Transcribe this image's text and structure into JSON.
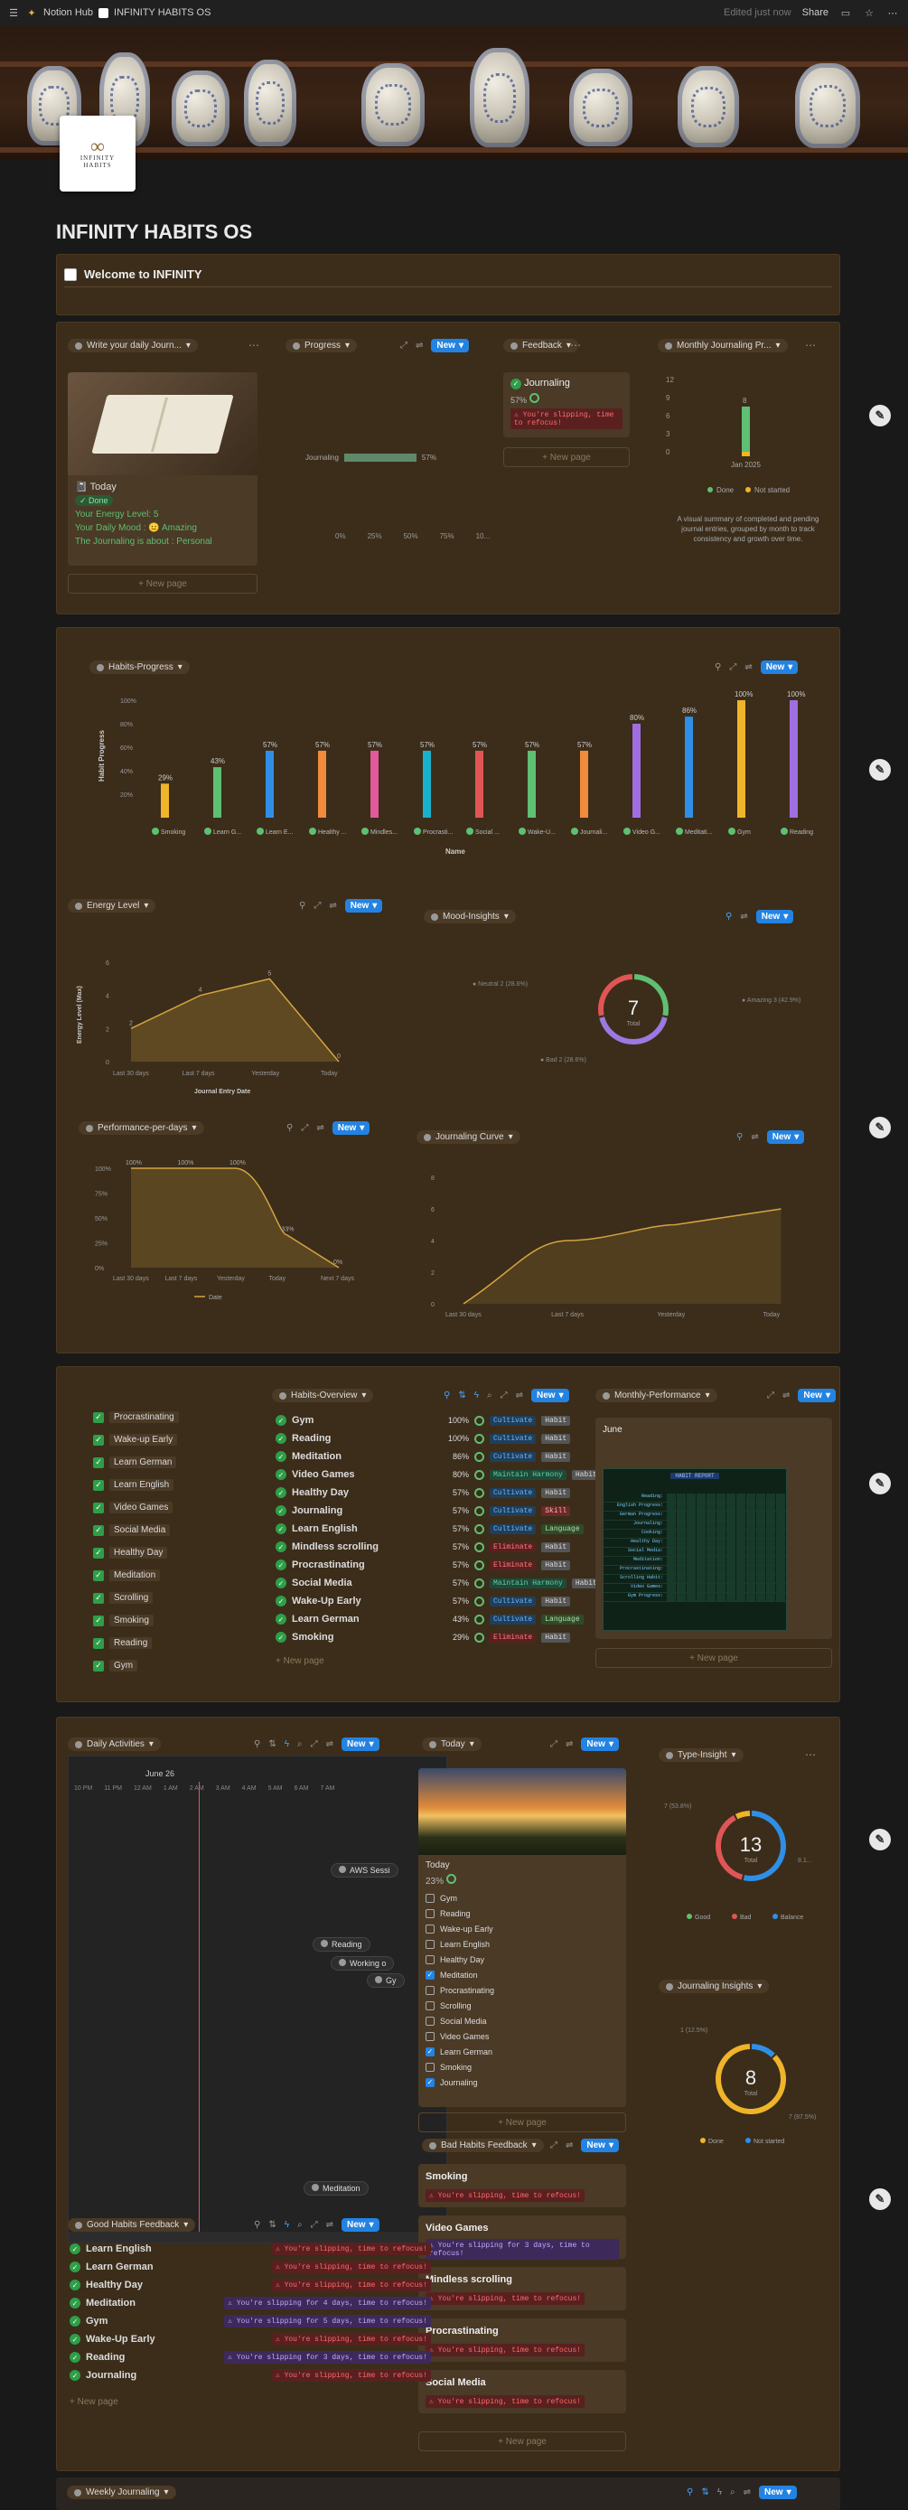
{
  "topbar": {
    "workspace": "Notion Hub",
    "page": "INFINITY HABITS OS",
    "edited": "Edited just now",
    "share": "Share"
  },
  "logo": {
    "symbol": "∞",
    "line1": "INFINITY",
    "line2": "HABITS"
  },
  "page_title": "INFINITY HABITS OS",
  "welcome": "Welcome to INFINITY",
  "new": "New",
  "new_page": "+ New page",
  "sec1": {
    "journal": {
      "chip": "Write your daily Journ...",
      "title": "Today",
      "done": "✓ Done",
      "energy": "Your Energy Level: 5",
      "mood": "Your Daily Mood : 😐 Amazing",
      "about": "The Journaling is about : Personal"
    },
    "progress": {
      "chip": "Progress",
      "row": "Journaling",
      "pct": "57%",
      "ticks": [
        "0%",
        "25%",
        "50%",
        "75%",
        "10..."
      ]
    },
    "feedback": {
      "chip": "Feedback",
      "title": "Journaling",
      "pct": "57%",
      "warn": "⚠ You're slipping, time to refocus!"
    },
    "monthly": {
      "chip": "Monthly Journaling Pr...",
      "yticks": [
        "12",
        "9",
        "6",
        "3",
        "0"
      ],
      "value": "8",
      "xlabel": "Jan 2025",
      "legend": [
        "Done",
        "Not started"
      ],
      "desc": "A visual summary of completed and pending journal entries, grouped by month to track consistency and growth over time."
    }
  },
  "habits_progress": {
    "chip": "Habits-Progress",
    "ylabel": "Habit Progress",
    "xlabel": "Name",
    "yticks": [
      "100%",
      "80%",
      "60%",
      "40%",
      "20%"
    ]
  },
  "chart_data": [
    {
      "type": "bar",
      "title": "Habits-Progress",
      "xlabel": "Name",
      "ylabel": "Habit Progress",
      "categories": [
        "Smoking",
        "Learn G...",
        "Learn E...",
        "Healthy ...",
        "Mindles...",
        "Procrasti...",
        "Social ...",
        "Wake-U...",
        "Journali...",
        "Video G...",
        "Meditati...",
        "Gym",
        "Reading"
      ],
      "values": [
        29,
        43,
        57,
        57,
        57,
        57,
        57,
        57,
        57,
        80,
        86,
        100,
        100
      ],
      "labels": [
        "29%",
        "43%",
        "57%",
        "57%",
        "57%",
        "57%",
        "57%",
        "57%",
        "57%",
        "80%",
        "86%",
        "100%",
        "100%"
      ],
      "colors": [
        "#f0b429",
        "#5fbf73",
        "#2f8fe6",
        "#f08a3c",
        "#e05a9c",
        "#19b0c9",
        "#e05555",
        "#5fbf73",
        "#f08a3c",
        "#a06ee0",
        "#2f8fe6",
        "#f0b429",
        "#a06ee0"
      ],
      "ylim": [
        0,
        100
      ]
    },
    {
      "type": "area",
      "title": "Energy Level",
      "xlabel": "Journal Entry Date",
      "ylabel": "Energy Level (Max)",
      "categories": [
        "Last 30 days",
        "Last 7 days",
        "Yesterday",
        "Today"
      ],
      "values": [
        2,
        4,
        5,
        0
      ],
      "yticks": [
        "6",
        "4",
        "2",
        "0"
      ]
    },
    {
      "type": "pie",
      "title": "Mood-Insights",
      "total": "7",
      "total_label": "Total",
      "slices": [
        {
          "name": "Neutral",
          "label": "Neutral 2 (28.6%)",
          "value": 2,
          "color": "#5fbf73"
        },
        {
          "name": "Amazing",
          "label": "Amazing 3 (42.9%)",
          "value": 3,
          "color": "#9a7ae0"
        },
        {
          "name": "Bad",
          "label": "Bad 2 (28.6%)",
          "value": 2,
          "color": "#e05555"
        }
      ]
    },
    {
      "type": "area",
      "title": "Performance-per-days",
      "categories": [
        "Last 30 days",
        "Last 7 days",
        "Yesterday",
        "Today",
        "Next 7 days"
      ],
      "values": [
        100,
        100,
        100,
        33,
        0
      ],
      "labels": [
        "100%",
        "100%",
        "100%",
        "33%",
        "0%"
      ],
      "yticks": [
        "100%",
        "75%",
        "50%",
        "25%",
        "0%"
      ],
      "legend": "Date"
    },
    {
      "type": "line",
      "title": "Journaling Curve",
      "categories": [
        "Last 30 days",
        "Last 7 days",
        "Yesterday",
        "Today"
      ],
      "values": [
        0,
        4,
        5,
        6
      ],
      "yticks": [
        "8",
        "6",
        "4",
        "2",
        "0"
      ]
    },
    {
      "type": "pie",
      "title": "Type-Insight",
      "total": "13",
      "total_label": "Total",
      "slices": [
        {
          "name": "Good",
          "label": "7 (53.8%)",
          "value": 7,
          "color": "#2f8fe6"
        },
        {
          "name": "Bad",
          "label": "",
          "value": 5,
          "color": "#e05555"
        },
        {
          "name": "Balance",
          "label": "8.1...",
          "value": 1,
          "color": "#f0b429"
        }
      ]
    },
    {
      "type": "pie",
      "title": "Journaling Insights",
      "total": "8",
      "total_label": "Total",
      "slices": [
        {
          "name": "Done",
          "label": "1 (12.5%)",
          "value": 1,
          "color": "#2f8fe6"
        },
        {
          "name": "Not started",
          "label": "7 (87.5%)",
          "value": 7,
          "color": "#f0b429"
        }
      ]
    }
  ],
  "sec2": {
    "energy_chip": "Energy Level",
    "mood_chip": "Mood-Insights",
    "perf_chip": "Performance-per-days",
    "curve_chip": "Journaling Curve",
    "x_energy": "Journal Entry Date",
    "y_energy": "Energy Level (Max)"
  },
  "sec3": {
    "checklist": [
      "Procrastinating",
      "Wake-up Early",
      "Learn German",
      "Learn English",
      "Video Games",
      "Social Media",
      "Healthy Day",
      "Meditation",
      "Scrolling",
      "Smoking",
      "Reading",
      "Gym"
    ],
    "overview_chip": "Habits-Overview",
    "overview": [
      {
        "name": "Gym",
        "pct": "100%",
        "type": "Cultivate",
        "cat": "Habit",
        "cls": "t-cult",
        "ccls": "t-habit"
      },
      {
        "name": "Reading",
        "pct": "100%",
        "type": "Cultivate",
        "cat": "Habit",
        "cls": "t-cult",
        "ccls": "t-habit"
      },
      {
        "name": "Meditation",
        "pct": "86%",
        "type": "Cultivate",
        "cat": "Habit",
        "cls": "t-cult",
        "ccls": "t-habit"
      },
      {
        "name": "Video Games",
        "pct": "80%",
        "type": "Maintain Harmony",
        "cat": "Habit",
        "cls": "t-maint",
        "ccls": "t-habit"
      },
      {
        "name": "Healthy Day",
        "pct": "57%",
        "type": "Cultivate",
        "cat": "Habit",
        "cls": "t-cult",
        "ccls": "t-habit"
      },
      {
        "name": "Journaling",
        "pct": "57%",
        "type": "Cultivate",
        "cat": "Skill",
        "cls": "t-cult",
        "ccls": "t-skill"
      },
      {
        "name": "Learn English",
        "pct": "57%",
        "type": "Cultivate",
        "cat": "Language",
        "cls": "t-cult",
        "ccls": "t-lang"
      },
      {
        "name": "Mindless scrolling",
        "pct": "57%",
        "type": "Eliminate",
        "cat": "Habit",
        "cls": "t-elim",
        "ccls": "t-habit"
      },
      {
        "name": "Procrastinating",
        "pct": "57%",
        "type": "Eliminate",
        "cat": "Habit",
        "cls": "t-elim",
        "ccls": "t-habit"
      },
      {
        "name": "Social Media",
        "pct": "57%",
        "type": "Maintain Harmony",
        "cat": "Habit",
        "cls": "t-maint",
        "ccls": "t-habit"
      },
      {
        "name": "Wake-Up Early",
        "pct": "57%",
        "type": "Cultivate",
        "cat": "Habit",
        "cls": "t-cult",
        "ccls": "t-habit"
      },
      {
        "name": "Learn German",
        "pct": "43%",
        "type": "Cultivate",
        "cat": "Language",
        "cls": "t-cult",
        "ccls": "t-lang"
      },
      {
        "name": "Smoking",
        "pct": "29%",
        "type": "Eliminate",
        "cat": "Habit",
        "cls": "t-elim",
        "ccls": "t-habit"
      }
    ],
    "monthly_chip": "Monthly-Performance",
    "month": "June",
    "table_title": "HABIT REPORT",
    "table_rows": [
      "Reading:",
      "English Progress:",
      "German Progress:",
      "Journaling:",
      "Cooking:",
      "Healthy Day:",
      "Social Media:",
      "Meditation:",
      "Procrastinating:",
      "Scrolling Habit:",
      "Video Games:",
      "Gym Progress:"
    ]
  },
  "sec4": {
    "daily_chip": "Daily Activities",
    "date": "June 26",
    "times": [
      "10 PM",
      "11 PM",
      "12 AM",
      "1 AM",
      "2 AM",
      "3 AM",
      "4 AM",
      "5 AM",
      "6 AM",
      "7 AM"
    ],
    "events": [
      "AWS Sessi",
      "Reading",
      "Working o",
      "Gy",
      "Meditation"
    ],
    "today_chip": "Today",
    "today_title": "Today",
    "today_pct": "23%",
    "today_list": [
      {
        "n": "Gym",
        "c": false
      },
      {
        "n": "Reading",
        "c": false
      },
      {
        "n": "Wake-up Early",
        "c": false
      },
      {
        "n": "Learn English",
        "c": false
      },
      {
        "n": "Healthy Day",
        "c": false
      },
      {
        "n": "Meditation",
        "c": true
      },
      {
        "n": "Procrastinating",
        "c": false
      },
      {
        "n": "Scrolling",
        "c": false
      },
      {
        "n": "Social Media",
        "c": false
      },
      {
        "n": "Video Games",
        "c": false
      },
      {
        "n": "Learn German",
        "c": true
      },
      {
        "n": "Smoking",
        "c": false
      },
      {
        "n": "Journaling",
        "c": true
      }
    ],
    "type_chip": "Type-Insight",
    "type_legend": [
      "Good",
      "Bad",
      "Balance"
    ],
    "ji_chip": "Journaling Insights",
    "ji_legend": [
      "Done",
      "Not started"
    ],
    "good_chip": "Good Habits Feedback",
    "good": [
      {
        "n": "Learn English",
        "w": "⚠ You're slipping, time to refocus!",
        "p": false
      },
      {
        "n": "Learn German",
        "w": "⚠ You're slipping, time to refocus!",
        "p": false
      },
      {
        "n": "Healthy Day",
        "w": "⚠ You're slipping, time to refocus!",
        "p": false
      },
      {
        "n": "Meditation",
        "w": "⚠ You're slipping for 4 days, time to refocus!",
        "p": true
      },
      {
        "n": "Gym",
        "w": "⚠ You're slipping for 5 days, time to refocus!",
        "p": true
      },
      {
        "n": "Wake-Up Early",
        "w": "⚠ You're slipping, time to refocus!",
        "p": false
      },
      {
        "n": "Reading",
        "w": "⚠ You're slipping for 3 days, time to refocus!",
        "p": true
      },
      {
        "n": "Journaling",
        "w": "⚠ You're slipping, time to refocus!",
        "p": false
      }
    ],
    "bad_chip": "Bad Habits Feedback",
    "bad": [
      {
        "n": "Smoking",
        "w": "⚠ You're slipping, time to refocus!",
        "p": false
      },
      {
        "n": "Video Games",
        "w": "⚠ You're slipping for 3 days, time to refocus!",
        "p": true
      },
      {
        "n": "Mindless scrolling",
        "w": "⚠ You're slipping, time to refocus!",
        "p": false
      },
      {
        "n": "Procrastinating",
        "w": "⚠ You're slipping, time to refocus!",
        "p": false
      },
      {
        "n": "Social Media",
        "w": "⚠ You're slipping, time to refocus!",
        "p": false
      }
    ]
  },
  "weekly_chip": "Weekly Journaling"
}
